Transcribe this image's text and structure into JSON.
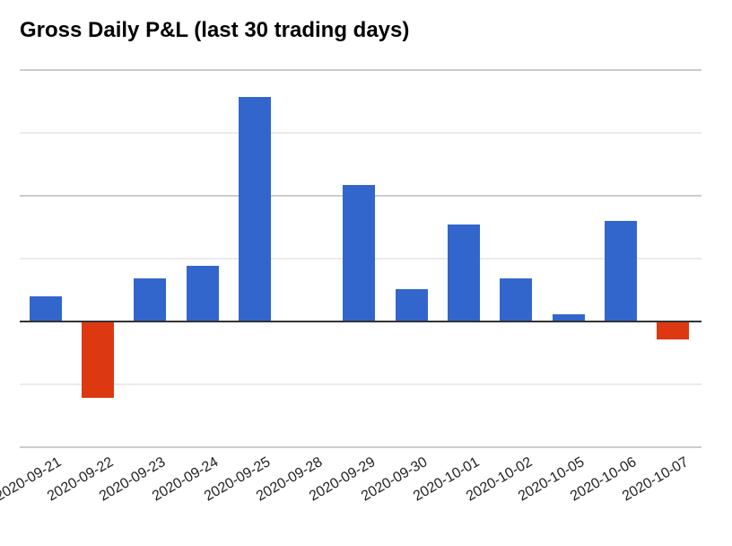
{
  "title": "Gross Daily P&L (last 30 trading days)",
  "colors": {
    "positive": "#3366cc",
    "negative": "#dc3912",
    "baseline": "#333333",
    "grid_major": "#cccccc",
    "grid_minor": "#ebebeb"
  },
  "chart_data": {
    "type": "bar",
    "title": "Gross Daily P&L (last 30 trading days)",
    "xlabel": "",
    "ylabel": "",
    "categories": [
      "2020-09-21",
      "2020-09-22",
      "2020-09-23",
      "2020-09-24",
      "2020-09-25",
      "2020-09-28",
      "2020-09-29",
      "2020-09-30",
      "2020-10-01",
      "2020-10-02",
      "2020-10-05",
      "2020-10-06",
      "2020-10-07"
    ],
    "values": [
      0.4,
      -1.21,
      0.69,
      0.89,
      3.57,
      0,
      2.17,
      0.51,
      1.54,
      0.69,
      0.11,
      1.6,
      -0.29
    ],
    "value_units": "gridline units (y-axis tick labels not shown)",
    "ylim": [
      -2,
      4
    ],
    "grid": true,
    "legend": "none",
    "y_tick_labels_visible": false,
    "colors_rule": "positive=blue, negative=red"
  }
}
